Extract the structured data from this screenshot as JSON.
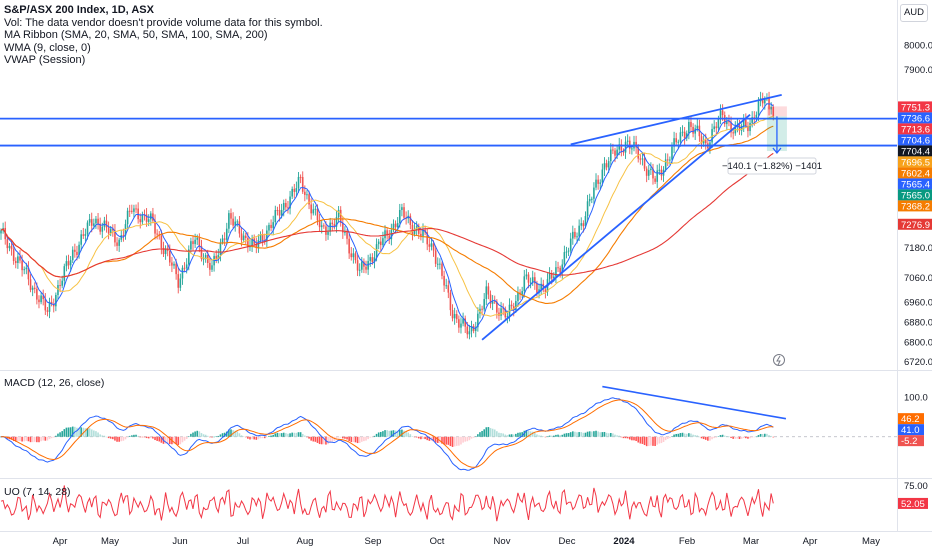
{
  "legend": {
    "title": "S&P/ASX 200 Index, 1D, ASX",
    "vol": "Vol: The data vendor doesn't provide volume data for this symbol.",
    "ma_ribbon": "MA Ribbon (SMA, 20, SMA, 50, SMA, 100, SMA, 200)",
    "wma": "WMA (9, close, 0)",
    "vwap": "VWAP (Session)"
  },
  "currency": "AUD",
  "macd_title": "MACD (12, 26, close)",
  "uo_title": "UO (7, 14, 28)",
  "measure_label": "−140.1 (−1.82%) −1401",
  "colors": {
    "up": "#26a69a",
    "down": "#ef5350",
    "line_blue": "#2962ff",
    "sma20": "#f7c244",
    "sma_orange": "#f57c00",
    "sma_red": "#e53935",
    "macd_line": "#2962ff",
    "signal_line": "#ff6d00",
    "uo": "#f23645"
  },
  "chart_data": [
    {
      "type": "candlestick",
      "ylim": [
        6700,
        8050
      ],
      "y_ticks": [
        8000,
        7900,
        7180,
        7060,
        6960,
        6880,
        6800,
        6720
      ],
      "x_labels": [
        "Apr",
        "May",
        "Jun",
        "Jul",
        "Aug",
        "Sep",
        "Oct",
        "Nov",
        "Dec",
        "2024",
        "Feb",
        "Mar",
        "Apr",
        "May"
      ],
      "start_close": 7240,
      "anchors": [
        {
          "i": 0,
          "v": 7240
        },
        {
          "i": 8,
          "v": 7130
        },
        {
          "i": 22,
          "v": 6920
        },
        {
          "i": 34,
          "v": 7160
        },
        {
          "i": 44,
          "v": 7300
        },
        {
          "i": 56,
          "v": 7210
        },
        {
          "i": 62,
          "v": 7340
        },
        {
          "i": 72,
          "v": 7280
        },
        {
          "i": 84,
          "v": 7050
        },
        {
          "i": 92,
          "v": 7220
        },
        {
          "i": 100,
          "v": 7090
        },
        {
          "i": 108,
          "v": 7300
        },
        {
          "i": 120,
          "v": 7180
        },
        {
          "i": 134,
          "v": 7350
        },
        {
          "i": 142,
          "v": 7450
        },
        {
          "i": 152,
          "v": 7250
        },
        {
          "i": 160,
          "v": 7300
        },
        {
          "i": 170,
          "v": 7080
        },
        {
          "i": 180,
          "v": 7200
        },
        {
          "i": 190,
          "v": 7320
        },
        {
          "i": 205,
          "v": 7180
        },
        {
          "i": 214,
          "v": 6920
        },
        {
          "i": 222,
          "v": 6830
        },
        {
          "i": 230,
          "v": 6990
        },
        {
          "i": 240,
          "v": 6900
        },
        {
          "i": 248,
          "v": 7050
        },
        {
          "i": 258,
          "v": 7020
        },
        {
          "i": 266,
          "v": 7130
        },
        {
          "i": 276,
          "v": 7300
        },
        {
          "i": 286,
          "v": 7520
        },
        {
          "i": 296,
          "v": 7610
        },
        {
          "i": 302,
          "v": 7560
        },
        {
          "i": 310,
          "v": 7450
        },
        {
          "i": 318,
          "v": 7580
        },
        {
          "i": 326,
          "v": 7680
        },
        {
          "i": 334,
          "v": 7600
        },
        {
          "i": 342,
          "v": 7720
        },
        {
          "i": 348,
          "v": 7650
        },
        {
          "i": 356,
          "v": 7700
        },
        {
          "i": 362,
          "v": 7790
        },
        {
          "i": 366,
          "v": 7713
        }
      ],
      "price_tags": [
        {
          "label": "7751.3",
          "value": 7751.3,
          "color": "#f23645"
        },
        {
          "label": "7736.6",
          "value": 7736.6,
          "color": "#2962ff"
        },
        {
          "label": "7713.6",
          "value": 7713.6,
          "color": "#f23645"
        },
        {
          "label": "7704.6",
          "value": 7704.6,
          "color": "#2962ff"
        },
        {
          "label": "7704.4",
          "value": 7704.4,
          "color": "#131722"
        },
        {
          "label": "7696.5",
          "value": 7696.5,
          "color": "#f7a21b"
        },
        {
          "label": "7602.4",
          "value": 7602.4,
          "color": "#f57c00"
        },
        {
          "label": "7565.4",
          "value": 7565.4,
          "color": "#2962ff"
        },
        {
          "label": "7565.0",
          "value": 7565.0,
          "color": "#089981"
        },
        {
          "label": "7368.2",
          "value": 7368.2,
          "color": "#f57c00"
        },
        {
          "label": "7276.9",
          "value": 7276.9,
          "color": "#e53935"
        }
      ],
      "horizontal_levels": [
        7704,
        7595
      ],
      "trend_lines": [
        {
          "from": {
            "i": 228,
            "v": 6810
          },
          "to": {
            "i": 355,
            "v": 7720
          }
        },
        {
          "from": {
            "i": 270,
            "v": 7600
          },
          "to": {
            "i": 370,
            "v": 7800
          }
        }
      ],
      "measure": {
        "from": 7713,
        "to": 7573
      }
    },
    {
      "type": "line",
      "title": "MACD (12, 26, close)",
      "ylim": [
        -100,
        160
      ],
      "y_ticks": [
        100.0
      ],
      "series": [
        {
          "name": "MACD",
          "color": "#2962ff"
        },
        {
          "name": "Signal",
          "color": "#ff6d00"
        },
        {
          "name": "Histogram",
          "color": "#26a69a"
        }
      ],
      "tags": [
        {
          "label": "46.2",
          "value": 46.2,
          "color": "#ff6d00"
        },
        {
          "label": "41.0",
          "value": 41.0,
          "color": "#2962ff"
        },
        {
          "label": "-5.2",
          "value": -5.2,
          "color": "#ef5350"
        }
      ]
    },
    {
      "type": "line",
      "title": "UO (7, 14, 28)",
      "ylim": [
        20,
        80
      ],
      "y_ticks": [
        75.0
      ],
      "series": [
        {
          "name": "UO",
          "color": "#f23645"
        }
      ],
      "tags": [
        {
          "label": "52.05",
          "value": 52.05,
          "color": "#f23645"
        }
      ]
    }
  ]
}
